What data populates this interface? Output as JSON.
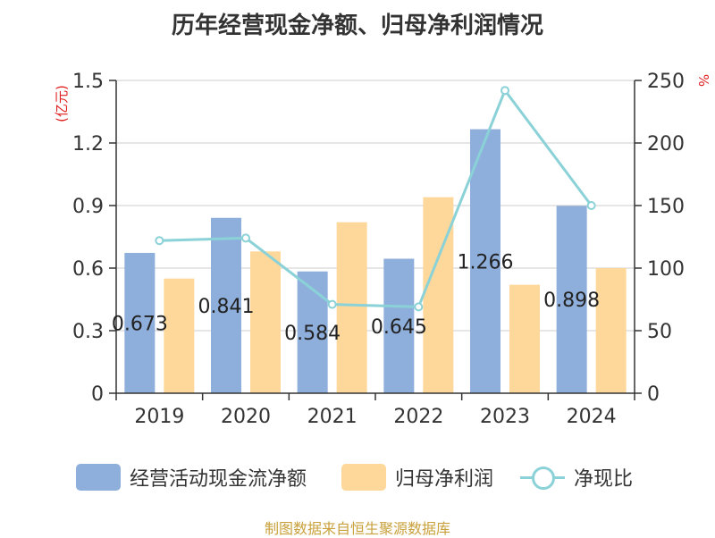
{
  "chart_data": {
    "type": "bar",
    "title": "历年经营现金净额、归母净利润情况",
    "categories": [
      "2019",
      "2020",
      "2021",
      "2022",
      "2023",
      "2024"
    ],
    "left_axis": {
      "unit": "(亿元)",
      "ylim": [
        0,
        1.5
      ],
      "ticks": [
        "0",
        "0.3",
        "0.6",
        "0.9",
        "1.2",
        "1.5"
      ]
    },
    "right_axis": {
      "unit": "%",
      "ylim": [
        0,
        250
      ],
      "ticks": [
        "0",
        "50",
        "100",
        "150",
        "200",
        "250"
      ]
    },
    "series": [
      {
        "name": "经营活动现金流净额",
        "type": "bar",
        "axis": "left",
        "color": "#8eafdb",
        "values": [
          0.673,
          0.841,
          0.584,
          0.645,
          1.266,
          0.898
        ],
        "labels": [
          "0.673",
          "0.841",
          "0.584",
          "0.645",
          "1.266",
          "0.898"
        ]
      },
      {
        "name": "归母净利润",
        "type": "bar",
        "axis": "left",
        "color": "#fed89b",
        "values": [
          0.55,
          0.68,
          0.82,
          0.94,
          0.52,
          0.6
        ]
      },
      {
        "name": "净现比",
        "type": "line",
        "axis": "right",
        "color": "#8ad2d7",
        "values": [
          122,
          124,
          71,
          69,
          242,
          150
        ]
      }
    ],
    "grid": true,
    "legend_position": "bottom"
  },
  "source": "制图数据来自恒生聚源数据库"
}
